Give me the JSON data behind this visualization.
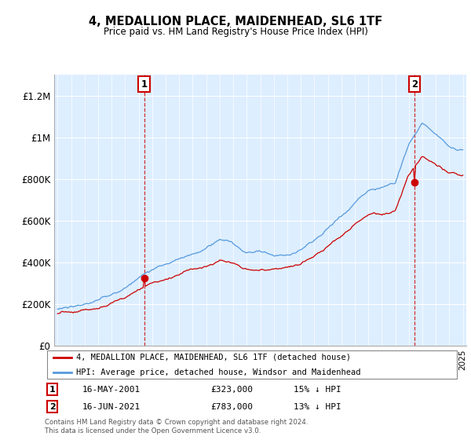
{
  "title": "4, MEDALLION PLACE, MAIDENHEAD, SL6 1TF",
  "subtitle": "Price paid vs. HM Land Registry's House Price Index (HPI)",
  "ylim": [
    0,
    1300000
  ],
  "yticks": [
    0,
    200000,
    400000,
    600000,
    800000,
    1000000,
    1200000
  ],
  "ytick_labels": [
    "£0",
    "£200K",
    "£400K",
    "£600K",
    "£800K",
    "£1M",
    "£1.2M"
  ],
  "bg_color": "#ddeeff",
  "hpi_color": "#5599dd",
  "price_color": "#cc0000",
  "sale1_idx_month": 77,
  "sale1_price": 323000,
  "sale2_idx_month": 317,
  "sale2_price": 783000,
  "sale1_label": "16-MAY-2001",
  "sale1_price_str": "£323,000",
  "sale1_note": "15% ↓ HPI",
  "sale2_label": "16-JUN-2021",
  "sale2_price_str": "£783,000",
  "sale2_note": "13% ↓ HPI",
  "legend_line1": "4, MEDALLION PLACE, MAIDENHEAD, SL6 1TF (detached house)",
  "legend_line2": "HPI: Average price, detached house, Windsor and Maidenhead",
  "footer": "Contains HM Land Registry data © Crown copyright and database right 2024.\nThis data is licensed under the Open Government Licence v3.0.",
  "start_year": 1995,
  "end_year": 2025,
  "num_months": 361
}
